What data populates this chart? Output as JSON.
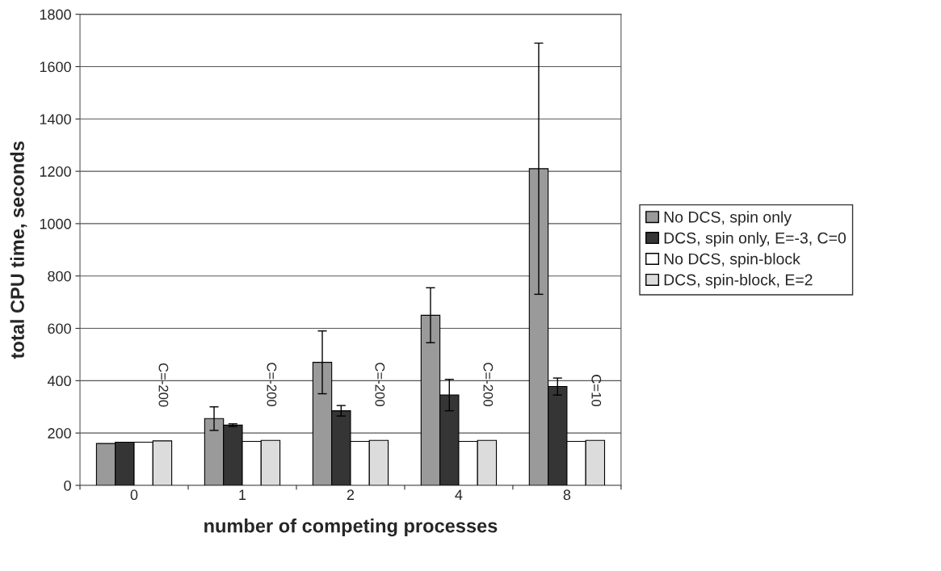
{
  "chart_data": {
    "type": "bar",
    "xlabel": "number of competing processes",
    "ylabel": "total CPU time, seconds",
    "categories": [
      "0",
      "1",
      "2",
      "4",
      "8"
    ],
    "series": [
      {
        "name": "No DCS, spin only",
        "color": "#9a9a9a",
        "values": [
          160,
          255,
          470,
          650,
          1210
        ],
        "errors": [
          null,
          [
            210,
            300
          ],
          [
            350,
            590
          ],
          [
            545,
            755
          ],
          [
            730,
            1690
          ]
        ]
      },
      {
        "name": "DCS, spin only, E=-3, C=0",
        "color": "#353535",
        "values": [
          165,
          230,
          285,
          345,
          378
        ],
        "errors": [
          null,
          [
            225,
            235
          ],
          [
            265,
            305
          ],
          [
            285,
            405
          ],
          [
            345,
            410
          ]
        ]
      },
      {
        "name": "No DCS, spin-block",
        "color": "#ffffff",
        "values": [
          165,
          168,
          168,
          168,
          168
        ]
      },
      {
        "name": "DCS, spin-block, E=2",
        "color": "#dcdcdc",
        "values": [
          170,
          172,
          172,
          172,
          172
        ]
      }
    ],
    "annotations": [
      "C=-200",
      "C=-200",
      "C=-200",
      "C=-200",
      "C=10"
    ],
    "ylim": [
      0,
      1800
    ],
    "yticks": [
      0,
      200,
      400,
      600,
      800,
      1000,
      1200,
      1400,
      1600,
      1800
    ],
    "grid": "y",
    "legend": "right"
  }
}
